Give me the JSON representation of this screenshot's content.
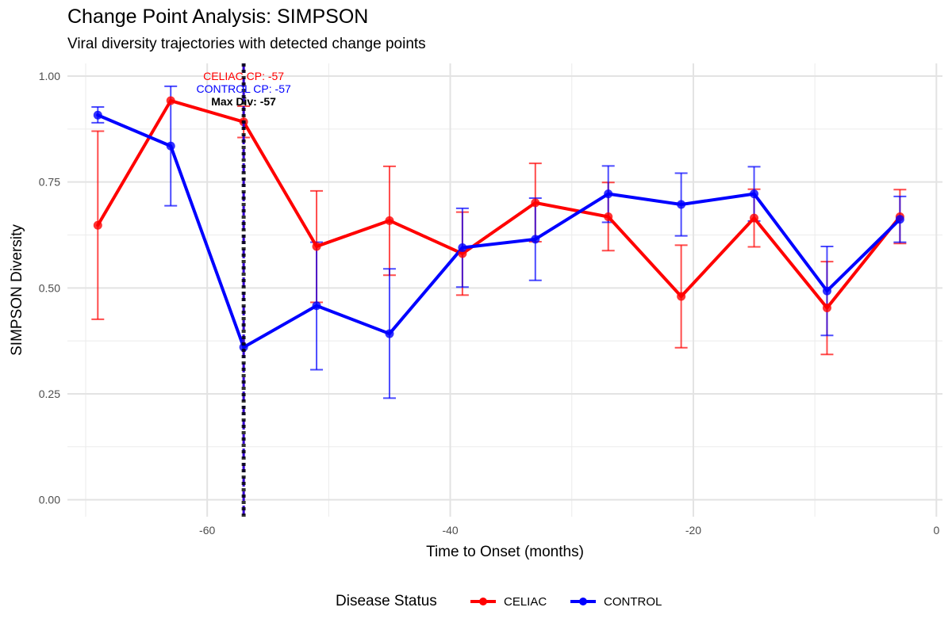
{
  "title": "Change Point Analysis: SIMPSON",
  "subtitle": "Viral diversity trajectories with detected change points",
  "chart_data": {
    "type": "line",
    "title": "Change Point Analysis: SIMPSON",
    "subtitle": "Viral diversity trajectories with detected change points",
    "xlabel": "Time to Onset (months)",
    "ylabel": "SIMPSON Diversity",
    "xlim": [
      -71.5,
      0.5
    ],
    "ylim": [
      -0.04,
      1.03
    ],
    "x_ticks": [
      -60,
      -40,
      -20,
      0
    ],
    "y_ticks": [
      0,
      0.25,
      0.5,
      0.75,
      1.0
    ],
    "x_tick_labels": [
      "-60",
      "-40",
      "-20",
      "0"
    ],
    "y_tick_labels": [
      "0.00",
      "0.25",
      "0.50",
      "0.75",
      "1.00"
    ],
    "grid": true,
    "legend": {
      "title": "Disease Status",
      "position": "bottom"
    },
    "series": [
      {
        "name": "CELIAC",
        "color": "#ff0000",
        "x": [
          -69,
          -63,
          -57,
          -51,
          -45,
          -39,
          -33,
          -27,
          -21,
          -15,
          -9,
          -3
        ],
        "y": [
          0.648,
          0.942,
          0.892,
          0.598,
          0.659,
          0.581,
          0.701,
          0.668,
          0.48,
          0.665,
          0.453,
          0.668
        ],
        "lower": [
          0.426,
          0.942,
          0.855,
          0.466,
          0.53,
          0.483,
          0.609,
          0.588,
          0.359,
          0.597,
          0.343,
          0.605
        ],
        "upper": [
          0.87,
          0.942,
          0.929,
          0.729,
          0.787,
          0.679,
          0.794,
          0.749,
          0.601,
          0.733,
          0.562,
          0.732
        ]
      },
      {
        "name": "CONTROL",
        "color": "#0000ff",
        "x": [
          -69,
          -63,
          -57,
          -51,
          -45,
          -39,
          -33,
          -27,
          -21,
          -15,
          -9,
          -3
        ],
        "y": [
          0.908,
          0.835,
          0.36,
          0.458,
          0.392,
          0.595,
          0.615,
          0.722,
          0.697,
          0.722,
          0.493,
          0.662
        ],
        "lower": [
          0.89,
          0.694,
          0.36,
          0.307,
          0.24,
          0.502,
          0.518,
          0.655,
          0.623,
          0.658,
          0.388,
          0.608
        ],
        "upper": [
          0.927,
          0.976,
          0.36,
          0.608,
          0.545,
          0.688,
          0.712,
          0.788,
          0.771,
          0.786,
          0.598,
          0.716
        ]
      }
    ],
    "vlines": [
      {
        "x": -57,
        "color": "#ff0000",
        "style": "dashed"
      },
      {
        "x": -57,
        "color": "#0000ff",
        "style": "dashed"
      },
      {
        "x": -57,
        "color": "#000000",
        "style": "dotted"
      }
    ],
    "annotations": [
      {
        "text": "CELIAC CP: -57",
        "x": -57,
        "y": 1.0,
        "color": "#ff0000",
        "bold": false
      },
      {
        "text": "CONTROL CP: -57",
        "x": -57,
        "y": 0.97,
        "color": "#0000ff",
        "bold": false
      },
      {
        "text": "Max Div: -57",
        "x": -57,
        "y": 0.94,
        "color": "#000000",
        "bold": true
      }
    ]
  }
}
